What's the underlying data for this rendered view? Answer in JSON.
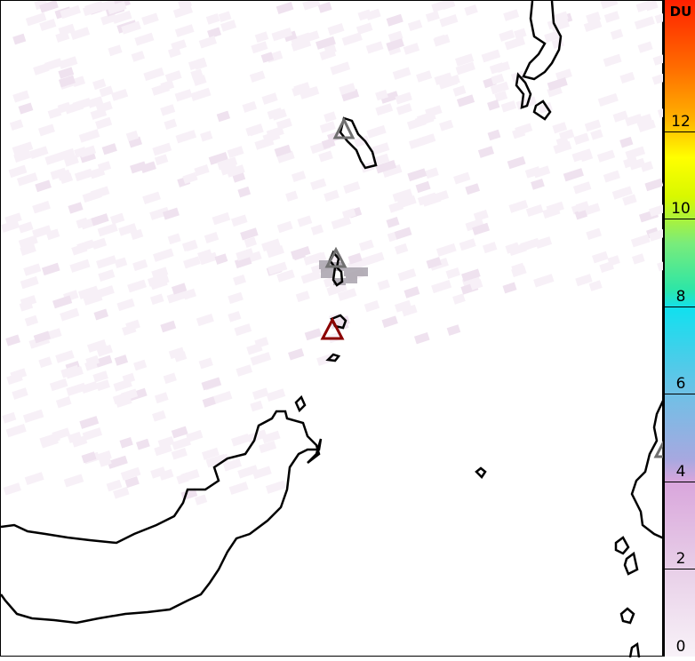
{
  "colorbar": {
    "unit": "DU",
    "ticks": [
      "0",
      "2",
      "4",
      "6",
      "8",
      "10",
      "12"
    ],
    "range": [
      0,
      15
    ],
    "colors": [
      "#f8f2f8",
      "#d9a6dc",
      "#6fc0e6",
      "#12e0ef",
      "#7aec7a",
      "#ffff00",
      "#ff6a00",
      "#ff2000"
    ]
  },
  "map": {
    "background": "#ffffff",
    "coastline_color": "#000000",
    "volcano_markers": [
      {
        "name": "volcano-marker-north",
        "color": "#707070"
      },
      {
        "name": "volcano-marker-center",
        "color": "#707070"
      },
      {
        "name": "volcano-marker-active",
        "color": "#8b0000"
      },
      {
        "name": "volcano-marker-east",
        "color": "#707070"
      }
    ]
  }
}
